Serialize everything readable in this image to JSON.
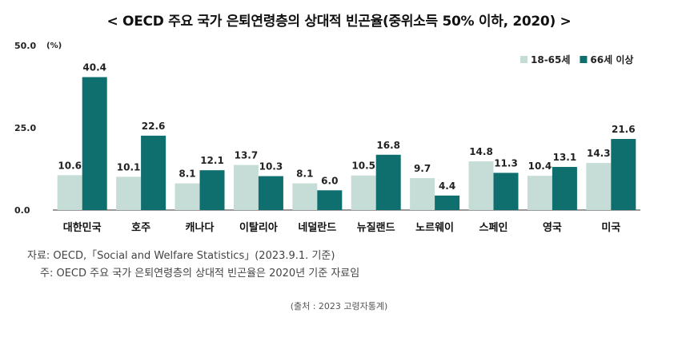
{
  "title": "< OECD 주요 국가 은퇴연령층의 상대적 빈곤율(중위소득 50% 이하, 2020) >",
  "notes": {
    "source": "자료: OECD,「Social and Welfare Statistics」(2023.9.1. 기준)",
    "memo": "주: OECD 주요 국가 은퇴연령층의 상대적 빈곤율은 2020년 기준 자료임"
  },
  "credit": "(출처 : 2023 고령자통계)",
  "colors": {
    "series1": "#c6ddd7",
    "series2": "#0f6e6e",
    "axis": "#333333"
  },
  "chart_data": {
    "type": "bar",
    "title": "< OECD 주요 국가 은퇴연령층의 상대적 빈곤율(중위소득 50% 이하, 2020) >",
    "unit": "(%)",
    "categories": [
      "대한민국",
      "호주",
      "캐나다",
      "이탈리아",
      "네덜란드",
      "뉴질랜드",
      "노르웨이",
      "스페인",
      "영국",
      "미국"
    ],
    "series": [
      {
        "name": "18-65세",
        "values": [
          10.6,
          10.1,
          8.1,
          13.7,
          8.1,
          10.5,
          9.7,
          14.8,
          10.4,
          14.3
        ]
      },
      {
        "name": "66세 이상",
        "values": [
          40.4,
          22.6,
          12.1,
          10.3,
          6.0,
          16.8,
          4.4,
          11.3,
          13.1,
          21.6
        ]
      }
    ],
    "ylim": [
      0,
      50
    ],
    "yticks": [
      "0.0",
      "25.0",
      "50.0"
    ],
    "legend": "top-right",
    "grid": false
  }
}
